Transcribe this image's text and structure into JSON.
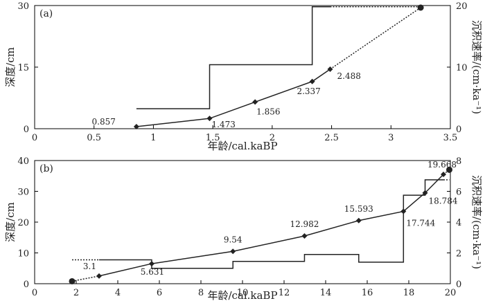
{
  "chart_data": [
    {
      "type": "line",
      "panel_label": "(a)",
      "xlabel": "年龄/cal.kaBP",
      "ylabel": "深度/cm",
      "y2label": "沉积速率/(cm·ka⁻¹)",
      "xlim": [
        0,
        3.5
      ],
      "ylim": [
        0,
        30
      ],
      "y2lim": [
        0,
        20
      ],
      "xticks": [
        "0",
        "0.5",
        "1",
        "1.5",
        "2",
        "2.5",
        "3",
        "3.5"
      ],
      "yticks": [
        "0",
        "15",
        "30"
      ],
      "y2ticks": [
        "0",
        "10",
        "20"
      ],
      "depth_series": {
        "points": [
          {
            "x": 0.857,
            "y": 0.5,
            "label": "0.857"
          },
          {
            "x": 1.473,
            "y": 2.5,
            "label": "1.473"
          },
          {
            "x": 1.856,
            "y": 6.5,
            "label": "1.856"
          },
          {
            "x": 2.337,
            "y": 11.5,
            "label": "2.337"
          },
          {
            "x": 2.488,
            "y": 14.5,
            "label": "2.488"
          }
        ],
        "extrapolated_end": {
          "x": 3.25,
          "y": 29.5
        }
      },
      "rate_steps": [
        {
          "x0": 0.857,
          "x1": 1.473,
          "rate": 3.25
        },
        {
          "x0": 1.473,
          "x1": 2.337,
          "rate": 10.4
        },
        {
          "x0": 2.337,
          "x1": 2.488,
          "rate": 19.8
        },
        {
          "x0": 2.488,
          "x1": 3.25,
          "rate": 19.8,
          "dotted": true
        }
      ]
    },
    {
      "type": "line",
      "panel_label": "(b)",
      "xlabel": "年龄/cal.kaBP",
      "ylabel": "深度/cm",
      "y2label": "沉积速率/(cm·ka⁻¹)",
      "xlim": [
        0,
        20
      ],
      "ylim": [
        0,
        40
      ],
      "y2lim": [
        0,
        8
      ],
      "xticks": [
        "0",
        "2",
        "4",
        "6",
        "8",
        "10",
        "12",
        "14",
        "16",
        "18",
        "20"
      ],
      "yticks": [
        "0",
        "10",
        "20",
        "30",
        "40"
      ],
      "y2ticks": [
        "0",
        "2",
        "4",
        "6",
        "8"
      ],
      "depth_series": {
        "extrapolated_start": {
          "x": 1.8,
          "y": 0.8
        },
        "points": [
          {
            "x": 3.1,
            "y": 2.5,
            "label": "3.1"
          },
          {
            "x": 5.631,
            "y": 6.5,
            "label": "5.631"
          },
          {
            "x": 9.54,
            "y": 10.5,
            "label": "9.54"
          },
          {
            "x": 12.982,
            "y": 15.5,
            "label": "12.982"
          },
          {
            "x": 15.593,
            "y": 20.5,
            "label": "15.593"
          },
          {
            "x": 17.744,
            "y": 23.5,
            "label": "17.744"
          },
          {
            "x": 18.784,
            "y": 29.5,
            "label": "18.784"
          },
          {
            "x": 19.668,
            "y": 35.5,
            "label": "19.668"
          }
        ],
        "extrapolated_end": {
          "x": 19.95,
          "y": 37
        }
      },
      "rate_steps": [
        {
          "x0": 1.8,
          "x1": 3.1,
          "rate": 1.55,
          "dotted": true
        },
        {
          "x0": 3.1,
          "x1": 5.631,
          "rate": 1.55
        },
        {
          "x0": 5.631,
          "x1": 9.54,
          "rate": 1.0
        },
        {
          "x0": 9.54,
          "x1": 12.982,
          "rate": 1.45
        },
        {
          "x0": 12.982,
          "x1": 15.593,
          "rate": 1.9
        },
        {
          "x0": 15.593,
          "x1": 17.744,
          "rate": 1.4
        },
        {
          "x0": 17.744,
          "x1": 18.784,
          "rate": 5.75
        },
        {
          "x0": 18.784,
          "x1": 19.668,
          "rate": 6.75
        },
        {
          "x0": 19.668,
          "x1": 19.95,
          "rate": 6.75,
          "dotted": true
        }
      ]
    }
  ]
}
